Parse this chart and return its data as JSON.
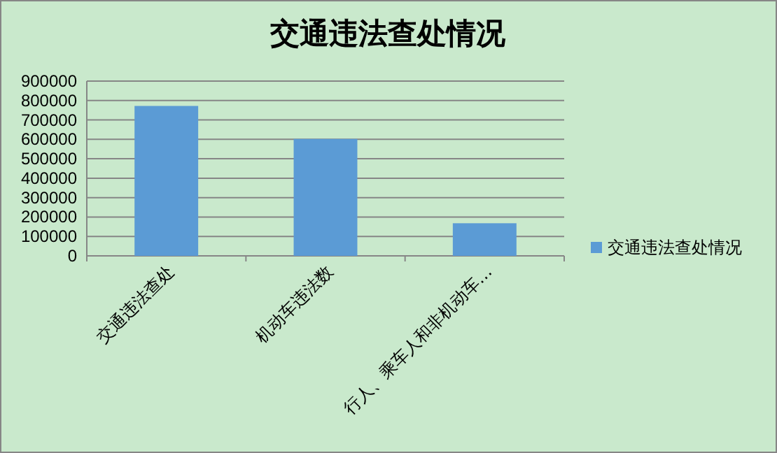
{
  "chart_data": {
    "type": "bar",
    "title": "交通违法查处情况",
    "categories": [
      "交通违法查处",
      "机动车违法数",
      "行人、乘车人和非机动车…"
    ],
    "series": [
      {
        "name": "交通违法查处情况",
        "color": "#5b9bd5",
        "values": [
          772000,
          602000,
          168000
        ]
      }
    ],
    "ylim": [
      0,
      900000
    ],
    "yticks": [
      0,
      100000,
      200000,
      300000,
      400000,
      500000,
      600000,
      700000,
      800000,
      900000
    ],
    "grid": "y",
    "legend": "right"
  }
}
